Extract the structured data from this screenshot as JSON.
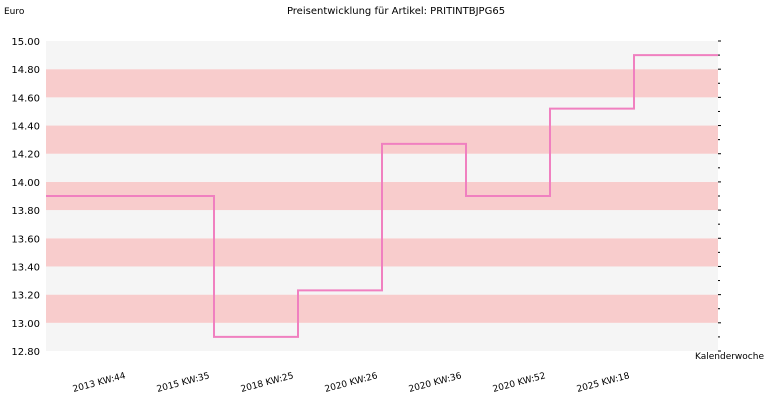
{
  "chart_data": {
    "type": "step-line",
    "title": "Preisentwicklung für Artikel: PRITINTBJPG65",
    "y_label": "Euro",
    "x_label": "Kalenderwoche",
    "categories": [
      "2013 KW:44",
      "2015 KW:35",
      "2018 KW:25",
      "2020 KW:26",
      "2020 KW:36",
      "2020 KW:52",
      "2025 KW:18"
    ],
    "values": [
      13.9,
      12.9,
      13.23,
      14.27,
      13.9,
      14.52,
      14.9
    ],
    "color": "#f080c0",
    "ylim": [
      12.8,
      15.0
    ],
    "yticks": [
      {
        "value": 12.8,
        "label": "12.80"
      },
      {
        "value": 13.0,
        "label": "13.00"
      },
      {
        "value": 13.2,
        "label": "13.20"
      },
      {
        "value": 13.4,
        "label": "13.40"
      },
      {
        "value": 13.6,
        "label": "13.60"
      },
      {
        "value": 13.8,
        "label": "13.80"
      },
      {
        "value": 14.0,
        "label": "14.00"
      },
      {
        "value": 14.2,
        "label": "14.20"
      },
      {
        "value": 14.4,
        "label": "14.40"
      },
      {
        "value": 14.6,
        "label": "14.60"
      },
      {
        "value": 14.8,
        "label": "14.80"
      },
      {
        "value": 15.0,
        "label": "15.00"
      }
    ],
    "band_colors": [
      "#f5f5f5",
      "#f8cccc"
    ]
  }
}
